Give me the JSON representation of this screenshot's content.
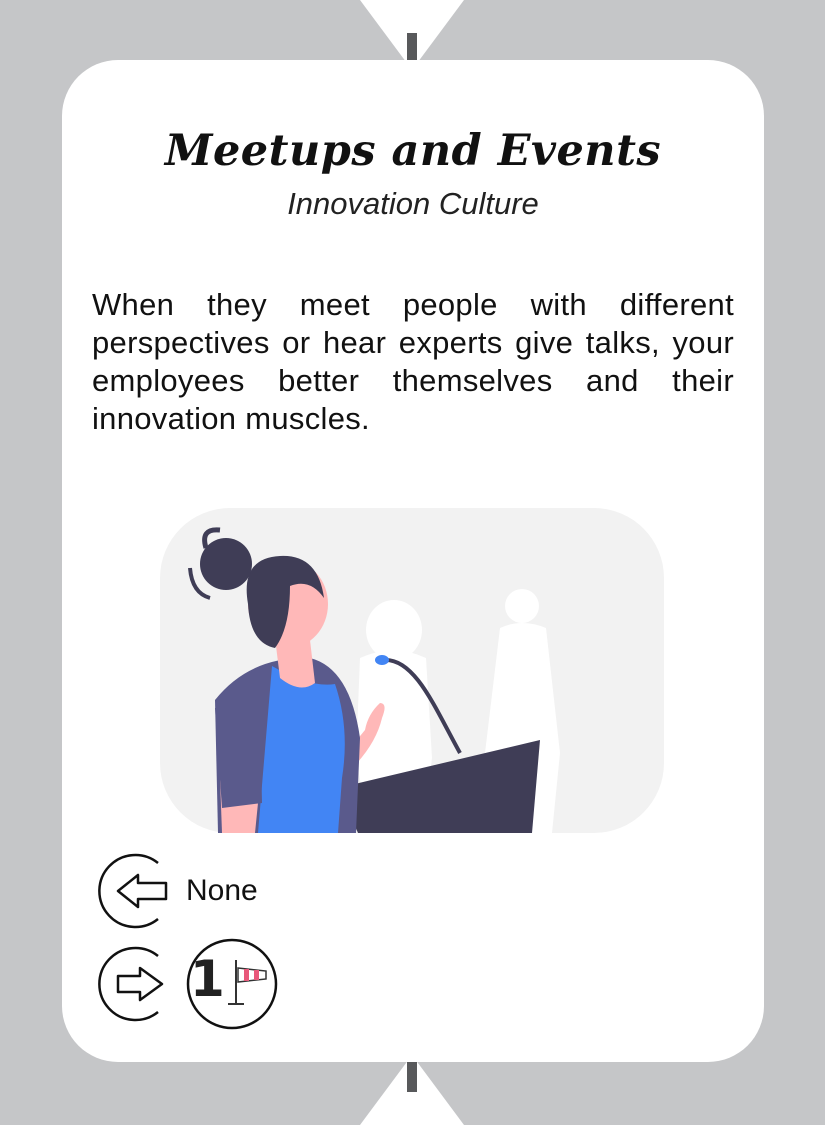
{
  "card": {
    "title": "Meetups and Events",
    "category": "Innovation Culture",
    "description": "When they meet people with different perspectives or hear experts give talks, your employees better themselves and their innovation muscles."
  },
  "inputs": {
    "label": "None"
  },
  "outputs": {
    "count": "1",
    "icon": "windsock-icon"
  },
  "colors": {
    "background": "#c5c6c8",
    "card": "#ffffff",
    "tick": "#58595b",
    "shirt": "#4285f4",
    "jacket": "#5a5a8c",
    "hair": "#3f3d56",
    "skin": "#ffb8b8",
    "podium": "#3f3d56",
    "windsock_stripe": "#e8587a"
  }
}
